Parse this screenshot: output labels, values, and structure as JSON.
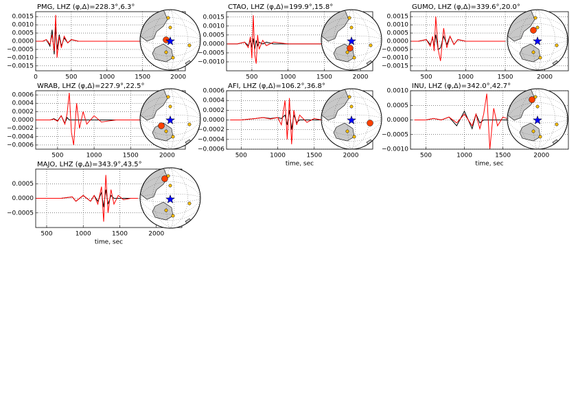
{
  "chart_data": [
    {
      "type": "line",
      "title": "PMG, LHZ (φ,Δ)=228.3°,6.3°",
      "x": [
        0,
        100,
        150,
        200,
        230,
        260,
        280,
        300,
        330,
        360,
        400,
        450,
        500,
        600,
        800,
        1000,
        1200,
        1500
      ],
      "series": [
        {
          "color": "#000000",
          "values": [
            0,
            0,
            0.0001,
            -0.0003,
            0.0007,
            -0.0008,
            0.0009,
            -0.0005,
            0.0004,
            -0.0003,
            0.0002,
            -0.0001,
            0.0001,
            0,
            0,
            0,
            0,
            0
          ]
        },
        {
          "color": "#ff0000",
          "values": [
            0,
            0,
            0.0001,
            -0.0002,
            0.0004,
            -0.0006,
            0.0016,
            -0.001,
            0.0003,
            -0.0004,
            0.0003,
            -0.0001,
            0.0001,
            0,
            0,
            0,
            0,
            0
          ]
        }
      ],
      "xlim": [
        0,
        2100
      ],
      "xticks": [
        0,
        500,
        1000,
        1500,
        2000
      ],
      "ylim": [
        -0.0018,
        0.0018
      ],
      "yticks": [
        {
          "value": 0.0015,
          "label": "0.0015"
        },
        {
          "value": 0.001,
          "label": "0.0010"
        },
        {
          "value": 0.0005,
          "label": "0.0005"
        },
        {
          "value": 0,
          "label": "0.0000"
        },
        {
          "value": -0.0005,
          "label": "−0.0005"
        },
        {
          "value": -0.001,
          "label": "−0.0010"
        },
        {
          "value": -0.0015,
          "label": "−0.0015"
        }
      ],
      "grid": true
    },
    {
      "type": "line",
      "title": "CTAO, LHZ (φ,Δ)=199.9°,15.8°",
      "x": [
        160,
        300,
        400,
        450,
        480,
        500,
        520,
        540,
        560,
        580,
        600,
        650,
        700,
        800,
        1000,
        1200,
        1500,
        1700
      ],
      "series": [
        {
          "color": "#000000",
          "values": [
            0,
            0,
            0.0001,
            -0.0001,
            0.0002,
            -0.0002,
            0.0003,
            -0.0003,
            0.0002,
            -0.0001,
            0.0001,
            0,
            0.0001,
            0,
            0,
            0,
            0,
            0
          ]
        },
        {
          "color": "#ff0000",
          "values": [
            0,
            0,
            0.0001,
            -0.0002,
            0.0004,
            -0.0008,
            0.0016,
            -0.0006,
            -0.0011,
            0.0005,
            -0.0003,
            0.0002,
            -0.0001,
            0.0001,
            0,
            0,
            0,
            0
          ]
        }
      ],
      "xlim": [
        150,
        2170
      ],
      "xticks": [
        500,
        1000,
        1500,
        2000
      ],
      "ylim": [
        -0.0015,
        0.0018
      ],
      "yticks": [
        {
          "value": 0.0015,
          "label": "0.0015"
        },
        {
          "value": 0.001,
          "label": "0.0010"
        },
        {
          "value": 0.0005,
          "label": "0.0005"
        },
        {
          "value": 0,
          "label": "0.0000"
        },
        {
          "value": -0.0005,
          "label": "−0.0005"
        },
        {
          "value": -0.001,
          "label": "−0.0010"
        }
      ],
      "grid": true
    },
    {
      "type": "line",
      "title": "GUMO, LHZ (φ,Δ)=339.6°,20.0°",
      "x": [
        310,
        400,
        500,
        550,
        580,
        600,
        620,
        650,
        680,
        720,
        760,
        800,
        850,
        900,
        1000,
        1200,
        1500
      ],
      "series": [
        {
          "color": "#000000",
          "values": [
            0,
            0,
            0.0001,
            -0.0002,
            0.0002,
            -0.0003,
            0.0004,
            -0.0005,
            -0.0004,
            0.0003,
            -0.0002,
            0.0003,
            -0.0002,
            0.0001,
            0,
            0,
            0
          ]
        },
        {
          "color": "#ff0000",
          "values": [
            0,
            0,
            0.0001,
            -0.0003,
            0.0003,
            -0.0006,
            0.0015,
            -0.0005,
            -0.0012,
            0.0008,
            -0.0004,
            0.0003,
            -0.0002,
            0.0001,
            0,
            0,
            0
          ]
        }
      ],
      "xlim": [
        300,
        2300
      ],
      "xticks": [
        500,
        1000,
        1500,
        2000
      ],
      "ylim": [
        -0.0018,
        0.0018
      ],
      "yticks": [
        {
          "value": 0.0015,
          "label": "0.0015"
        },
        {
          "value": 0.001,
          "label": "0.0010"
        },
        {
          "value": 0.0005,
          "label": "0.0005"
        },
        {
          "value": 0,
          "label": "0.0000"
        },
        {
          "value": -0.0005,
          "label": "−0.0005"
        },
        {
          "value": -0.001,
          "label": "−0.0010"
        },
        {
          "value": -0.0015,
          "label": "−0.0015"
        }
      ],
      "grid": true
    },
    {
      "type": "line",
      "title": "WRAB, LHZ (φ,Δ)=227.9°,22.5°",
      "x": [
        200,
        300,
        400,
        450,
        500,
        550,
        600,
        630,
        660,
        690,
        720,
        760,
        800,
        850,
        900,
        1000,
        1100,
        1300,
        1500,
        1700
      ],
      "series": [
        {
          "color": "#000000",
          "values": [
            0,
            0,
            0,
            3e-05,
            -2e-05,
            0.0001,
            -8e-05,
            6e-05,
            0,
            0,
            0,
            0,
            0,
            0,
            0,
            0,
            0,
            0,
            0,
            0
          ]
        },
        {
          "color": "#ff0000",
          "values": [
            0,
            0,
            0,
            2e-05,
            -3e-05,
            0.0001,
            -0.0001,
            0.00015,
            0.00065,
            -0.0003,
            -0.0006,
            0.0004,
            -0.0002,
            0.0002,
            -0.0001,
            0.0001,
            -5e-05,
            0,
            0,
            0
          ]
        }
      ],
      "xlim": [
        200,
        2250
      ],
      "xticks": [
        500,
        1000,
        1500,
        2000
      ],
      "ylim": [
        -0.0007,
        0.0007
      ],
      "yticks": [
        {
          "value": 0.0006,
          "label": "0.0006"
        },
        {
          "value": 0.0004,
          "label": "0.0004"
        },
        {
          "value": 0.0002,
          "label": "0.0002"
        },
        {
          "value": 0,
          "label": "0.0000"
        },
        {
          "value": -0.0002,
          "label": "−0.0002"
        },
        {
          "value": -0.0004,
          "label": "−0.0004"
        },
        {
          "value": -0.0006,
          "label": "−0.0006"
        }
      ],
      "grid": true
    },
    {
      "type": "line",
      "title": "AFI, LHZ (φ,Δ)=106.2°,36.8°",
      "xlabel": "time, sec",
      "x": [
        350,
        500,
        700,
        800,
        900,
        1000,
        1050,
        1100,
        1130,
        1160,
        1190,
        1220,
        1260,
        1300,
        1400,
        1500,
        1600,
        1800
      ],
      "series": [
        {
          "color": "#000000",
          "values": [
            0,
            0,
            3e-05,
            5e-05,
            3e-05,
            5e-05,
            3e-05,
            0.0001,
            -0.0001,
            0.0002,
            -0.0002,
            0.0001,
            -5e-05,
            0,
            0,
            0,
            0,
            0
          ]
        },
        {
          "color": "#ff0000",
          "values": [
            0,
            0,
            3e-05,
            5e-05,
            2e-05,
            5e-05,
            -0.0001,
            0.0004,
            -0.0004,
            0.00045,
            -0.0005,
            0.0002,
            -0.0001,
            0.0001,
            -5e-05,
            3e-05,
            0,
            0
          ]
        }
      ],
      "xlim": [
        300,
        2300
      ],
      "xticks": [
        500,
        1000,
        1500,
        2000
      ],
      "ylim": [
        -0.0006,
        0.0006
      ],
      "yticks": [
        {
          "value": 0.0006,
          "label": "0.0006"
        },
        {
          "value": 0.0004,
          "label": "0.0004"
        },
        {
          "value": 0.0002,
          "label": "0.0002"
        },
        {
          "value": 0,
          "label": "0.0000"
        },
        {
          "value": -0.0002,
          "label": "−0.0002"
        },
        {
          "value": -0.0004,
          "label": "−0.0004"
        },
        {
          "value": -0.0006,
          "label": "−0.0006"
        }
      ],
      "grid": true
    },
    {
      "type": "line",
      "title": "INU, LHZ (φ,Δ)=342.0°,42.7°",
      "xlabel": "time, sec",
      "x": [
        350,
        500,
        600,
        700,
        800,
        900,
        1000,
        1100,
        1150,
        1200,
        1250,
        1290,
        1330,
        1380,
        1430,
        1500,
        1600,
        1800
      ],
      "series": [
        {
          "color": "#000000",
          "values": [
            0,
            0,
            5e-05,
            0,
            0.0001,
            -0.0002,
            0.0003,
            -0.0003,
            0.0002,
            -0.0001,
            0,
            0,
            0,
            0,
            0,
            0,
            0,
            0
          ]
        },
        {
          "color": "#ff0000",
          "values": [
            0,
            0,
            5e-05,
            0,
            0.0001,
            -0.0001,
            0.0002,
            -0.0002,
            0.0002,
            -0.0003,
            0.0002,
            0.0009,
            -0.001,
            0.0004,
            -0.0002,
            0.0001,
            0,
            0
          ]
        }
      ],
      "xlim": [
        300,
        2350
      ],
      "xticks": [
        500,
        1000,
        1500,
        2000
      ],
      "ylim": [
        -0.001,
        0.001
      ],
      "yticks": [
        {
          "value": 0.001,
          "label": "0.0010"
        },
        {
          "value": 0.0005,
          "label": "0.0005"
        },
        {
          "value": 0,
          "label": "0.0000"
        },
        {
          "value": -0.0005,
          "label": "−0.0005"
        },
        {
          "value": -0.001,
          "label": "−0.0010"
        }
      ],
      "grid": true
    },
    {
      "type": "line",
      "title": "MAJO, LHZ (φ,Δ)=343.9°,43.5°",
      "xlabel": "time, sec",
      "x": [
        350,
        500,
        700,
        850,
        900,
        1000,
        1100,
        1150,
        1200,
        1250,
        1280,
        1310,
        1340,
        1380,
        1420,
        1480,
        1550,
        1650,
        1750
      ],
      "series": [
        {
          "color": "#000000",
          "values": [
            0,
            0,
            0,
            5e-05,
            -0.0001,
            0.0001,
            -0.0001,
            0.0001,
            -0.0001,
            0.0002,
            -0.0003,
            0.0003,
            -0.0002,
            0.0001,
            0,
            0,
            0,
            0,
            0
          ]
        },
        {
          "color": "#ff0000",
          "values": [
            0,
            0,
            0,
            5e-05,
            -0.0001,
            0.0001,
            -0.0001,
            0.0001,
            -0.0002,
            0.0004,
            -0.0008,
            0.0008,
            -0.0005,
            0.0003,
            -0.0002,
            0.0001,
            -5e-05,
            0,
            0
          ]
        }
      ],
      "xlim": [
        350,
        2350
      ],
      "xticks": [
        500,
        1000,
        1500,
        2000
      ],
      "ylim": [
        -0.001,
        0.001
      ],
      "yticks": [
        {
          "value": 0.0005,
          "label": "0.0005"
        },
        {
          "value": 0,
          "label": "0.0000"
        },
        {
          "value": -0.0005,
          "label": "−0.0005"
        }
      ],
      "grid": true
    }
  ]
}
